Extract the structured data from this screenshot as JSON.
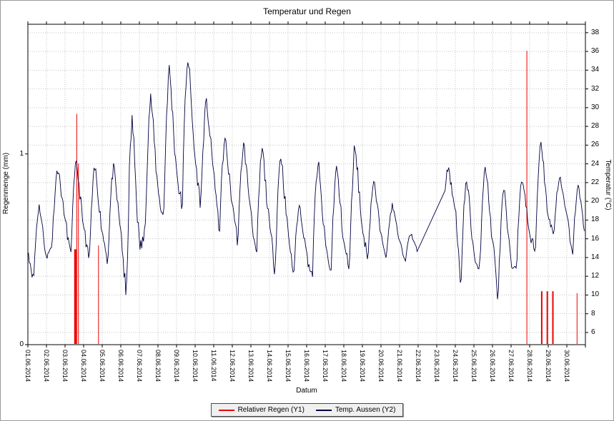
{
  "chart_data": {
    "type": "line",
    "title": "Temperatur und Regen",
    "xlabel": "Datum",
    "y1_label": "Regenmenge (mm)",
    "y2_label": "Temperatur (°C)",
    "grid": true,
    "legend_position": "bottom-center",
    "x_ticks": [
      "01.06.2014",
      "02.06.2014",
      "03.06.2014",
      "04.06.2014",
      "05.06.2014",
      "06.06.2014",
      "07.06.2014",
      "08.06.2014",
      "09.06.2014",
      "10.06.2014",
      "11.06.2014",
      "12.06.2014",
      "13.06.2014",
      "14.06.2014",
      "15.06.2014",
      "16.06.2014",
      "17.06.2014",
      "18.06.2014",
      "19.06.2014",
      "20.06.2014",
      "21.06.2014",
      "22.06.2014",
      "23.06.2014",
      "24.06.2014",
      "25.06.2014",
      "26.06.2014",
      "27.06.2014",
      "28.06.2014",
      "29.06.2014",
      "30.06.2014"
    ],
    "y1_axis": {
      "min": 0,
      "max": 1.68,
      "ticks": [
        1,
        0
      ]
    },
    "y2_axis": {
      "min": 4.7,
      "max": 38.9,
      "ticks": [
        38,
        36,
        34,
        32,
        30,
        28,
        26,
        24,
        22,
        20,
        18,
        16,
        14,
        12,
        10,
        8,
        6
      ]
    },
    "series": [
      {
        "name": "Relativer Regen (Y1)",
        "axis": "y1",
        "type": "bars",
        "color": "#ee0000",
        "bars": [
          {
            "day": 3.55,
            "value": 0.5,
            "width": 3
          },
          {
            "day": 3.63,
            "value": 1.21,
            "width": 1
          },
          {
            "day": 3.72,
            "value": 0.95,
            "width": 1
          },
          {
            "day": 4.8,
            "value": 0.52,
            "width": 1
          },
          {
            "day": 27.85,
            "value": 1.54,
            "width": 1
          },
          {
            "day": 28.65,
            "value": 0.28,
            "width": 2
          },
          {
            "day": 28.95,
            "value": 0.28,
            "width": 2
          },
          {
            "day": 29.25,
            "value": 0.28,
            "width": 2
          },
          {
            "day": 30.55,
            "value": 0.27,
            "width": 1
          }
        ]
      },
      {
        "name": "Temp. Aussen (Y2)",
        "axis": "y2",
        "type": "line",
        "color": "#000040",
        "daily": [
          {
            "day": 1,
            "min": 11.5,
            "max": 19.5
          },
          {
            "day": 2,
            "min": 15.5,
            "max": 23.5
          },
          {
            "day": 3,
            "min": 14.0,
            "max": 24.0
          },
          {
            "day": 4,
            "min": 13.5,
            "max": 23.5
          },
          {
            "day": 5,
            "min": 13.5,
            "max": 23.5
          },
          {
            "day": 6,
            "min": 9.0,
            "max": 28.5
          },
          {
            "day": 7,
            "min": 16.5,
            "max": 31.0
          },
          {
            "day": 8,
            "min": 18.0,
            "max": 34.0
          },
          {
            "day": 9,
            "min": 19.0,
            "max": 35.5
          },
          {
            "day": 10,
            "min": 19.5,
            "max": 30.5
          },
          {
            "day": 11,
            "min": 16.5,
            "max": 26.5
          },
          {
            "day": 12,
            "min": 15.5,
            "max": 26.0
          },
          {
            "day": 13,
            "min": 13.5,
            "max": 25.5
          },
          {
            "day": 14,
            "min": 12.5,
            "max": 25.0
          },
          {
            "day": 15,
            "min": 12.0,
            "max": 19.5
          },
          {
            "day": 16,
            "min": 11.5,
            "max": 24.0
          },
          {
            "day": 17,
            "min": 12.0,
            "max": 23.5
          },
          {
            "day": 18,
            "min": 12.5,
            "max": 26.0
          },
          {
            "day": 19,
            "min": 14.0,
            "max": 22.0
          },
          {
            "day": 20,
            "min": 14.0,
            "max": 19.5
          },
          {
            "day": 21,
            "min": 13.5,
            "max": 16.5
          },
          {
            "day": 22,
            "min": null,
            "max": null,
            "gap": true
          },
          {
            "day": 23,
            "min": 17.0,
            "max": 23.5,
            "gap_before": true
          },
          {
            "day": 24,
            "min": 10.5,
            "max": 22.5
          },
          {
            "day": 25,
            "min": 12.0,
            "max": 24.0
          },
          {
            "day": 26,
            "min": 9.5,
            "max": 21.0
          },
          {
            "day": 27,
            "min": 13.5,
            "max": 22.5
          },
          {
            "day": 28,
            "min": 14.5,
            "max": 26.5
          },
          {
            "day": 29,
            "min": 16.5,
            "max": 22.5
          },
          {
            "day": 30,
            "min": 14.0,
            "max": 21.5
          }
        ],
        "gap_note": "missing data on 22.06.2014 bridged by straight line"
      }
    ]
  }
}
